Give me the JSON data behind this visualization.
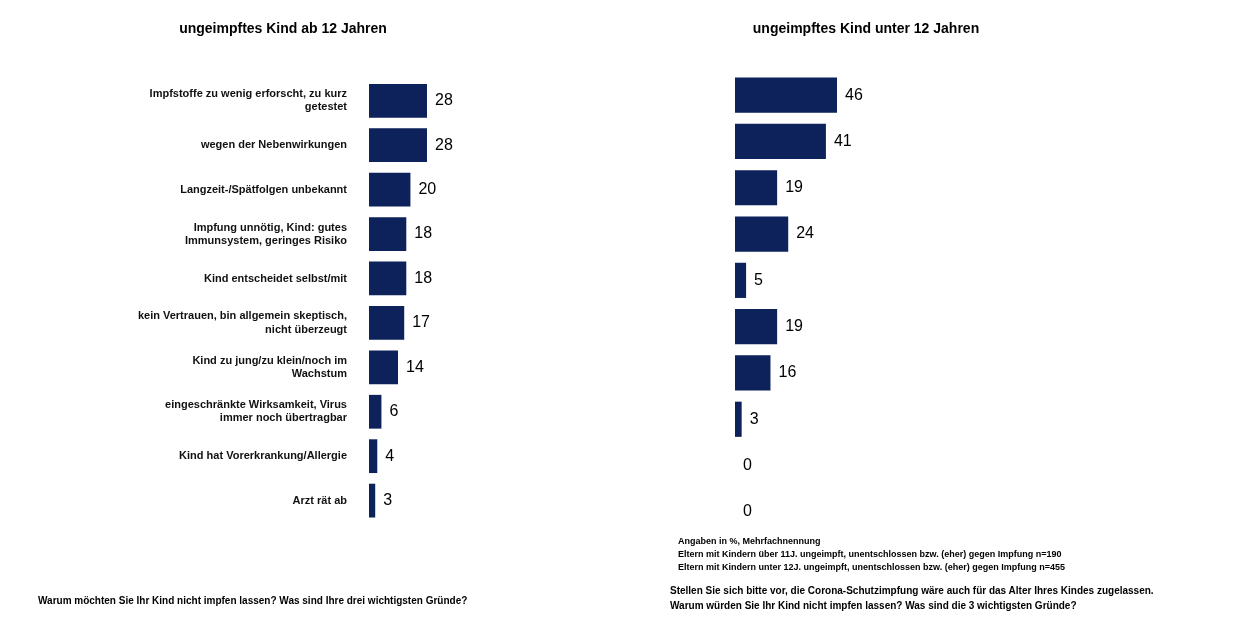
{
  "chart_data": [
    {
      "type": "bar",
      "orientation": "horizontal",
      "title": "ungeimpftes Kind ab 12 Jahren",
      "categories": [
        "Impfstoffe zu wenig erforscht, zu kurz getestet",
        "wegen der Nebenwirkungen",
        "Langzeit-/Spätfolgen unbekannt",
        "Impfung unnötig, Kind: gutes Immunsystem, geringes Risiko",
        "Kind entscheidet selbst/mit",
        "kein Vertrauen, bin allgemein skeptisch, nicht überzeugt",
        "Kind zu jung/zu klein/noch im Wachstum",
        "eingeschränkte Wirksamkeit, Virus immer noch übertragbar",
        "Kind hat Vorerkrankung/Allergie",
        "Arzt rät ab"
      ],
      "values": [
        28,
        28,
        20,
        18,
        18,
        17,
        14,
        6,
        4,
        3
      ],
      "color": "#0d215a",
      "data_labels": true,
      "tick_labels": "y",
      "legend": false,
      "annotations": [
        "Warum möchten Sie Ihr Kind nicht impfen lassen? Was sind Ihre drei wichtigsten Gründe?"
      ]
    },
    {
      "type": "bar",
      "orientation": "horizontal",
      "title": "ungeimpftes Kind unter 12 Jahren",
      "categories": [
        null,
        null,
        null,
        null,
        null,
        null,
        null,
        null,
        null,
        null
      ],
      "values": [
        46,
        41,
        19,
        24,
        5,
        19,
        16,
        3,
        0,
        0
      ],
      "color": "#0d215a",
      "data_labels": true,
      "tick_labels": false,
      "legend": false,
      "annotations": [
        "Angaben in %, Mehrfachnennung",
        "Eltern mit Kindern über 11J. ungeimpft, unentschlossen bzw. (eher) gegen Impfung n=190",
        "Eltern mit Kindern unter 12J. ungeimpft, unentschlossen bzw. (eher) gegen Impfung n=455",
        "Stellen Sie sich bitte vor, die Corona-Schutzimpfung wäre auch für das Alter Ihres Kindes zugelassen.",
        "Warum würden Sie Ihr Kind nicht impfen lassen? Was sind die 3 wichtigsten Gründe?"
      ]
    }
  ]
}
